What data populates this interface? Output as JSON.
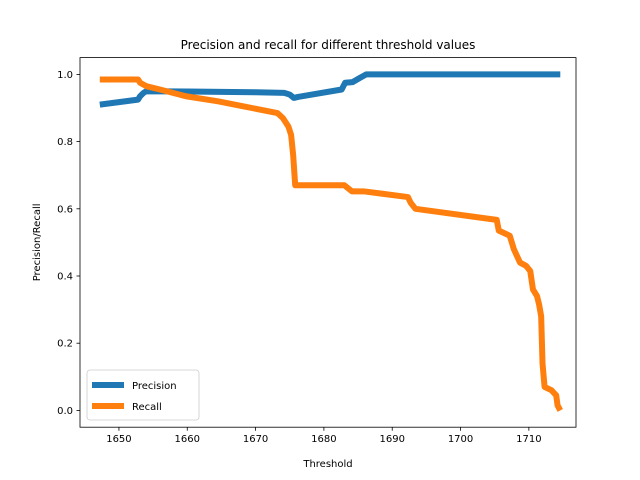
{
  "chart_data": {
    "type": "line",
    "title": "Precision and recall for different threshold values",
    "xlabel": "Threshold",
    "ylabel": "Precision/Recall",
    "xlim": [
      1644.3,
      1716.9
    ],
    "ylim": [
      -0.05,
      1.05
    ],
    "xticks": [
      1650,
      1660,
      1670,
      1680,
      1690,
      1700,
      1710
    ],
    "yticks": [
      0.0,
      0.2,
      0.4,
      0.6,
      0.8,
      1.0
    ],
    "grid": false,
    "legend_position": "lower-left",
    "series": [
      {
        "name": "Precision",
        "color": "#1f77b4",
        "points": [
          [
            1647.2,
            0.91
          ],
          [
            1652.8,
            0.925
          ],
          [
            1653.1,
            0.935
          ],
          [
            1653.6,
            0.945
          ],
          [
            1654.0,
            0.95
          ],
          [
            1660.0,
            0.949
          ],
          [
            1670.0,
            0.947
          ],
          [
            1674.2,
            0.945
          ],
          [
            1675.0,
            0.94
          ],
          [
            1675.6,
            0.93
          ],
          [
            1676.2,
            0.933
          ],
          [
            1682.6,
            0.955
          ],
          [
            1683.1,
            0.975
          ],
          [
            1684.2,
            0.977
          ],
          [
            1685.3,
            0.99
          ],
          [
            1686.2,
            1.0
          ],
          [
            1700.0,
            1.0
          ],
          [
            1714.6,
            1.0
          ]
        ]
      },
      {
        "name": "Recall",
        "color": "#ff7f0e",
        "points": [
          [
            1647.2,
            0.985
          ],
          [
            1652.8,
            0.985
          ],
          [
            1653.1,
            0.975
          ],
          [
            1654.0,
            0.965
          ],
          [
            1656.0,
            0.955
          ],
          [
            1659.8,
            0.935
          ],
          [
            1664.5,
            0.92
          ],
          [
            1668.2,
            0.905
          ],
          [
            1673.2,
            0.885
          ],
          [
            1674.0,
            0.87
          ],
          [
            1674.8,
            0.845
          ],
          [
            1675.2,
            0.82
          ],
          [
            1675.5,
            0.76
          ],
          [
            1675.8,
            0.67
          ],
          [
            1683.0,
            0.67
          ],
          [
            1684.1,
            0.652
          ],
          [
            1685.8,
            0.652
          ],
          [
            1692.3,
            0.635
          ],
          [
            1692.7,
            0.618
          ],
          [
            1693.4,
            0.6
          ],
          [
            1705.3,
            0.567
          ],
          [
            1705.6,
            0.535
          ],
          [
            1707.2,
            0.52
          ],
          [
            1707.8,
            0.48
          ],
          [
            1708.7,
            0.44
          ],
          [
            1709.6,
            0.43
          ],
          [
            1710.2,
            0.415
          ],
          [
            1710.6,
            0.36
          ],
          [
            1711.2,
            0.34
          ],
          [
            1711.5,
            0.315
          ],
          [
            1711.8,
            0.28
          ],
          [
            1712.0,
            0.14
          ],
          [
            1712.3,
            0.07
          ],
          [
            1713.3,
            0.06
          ],
          [
            1714.0,
            0.045
          ],
          [
            1714.2,
            0.015
          ],
          [
            1714.6,
            0.0
          ]
        ]
      }
    ]
  }
}
